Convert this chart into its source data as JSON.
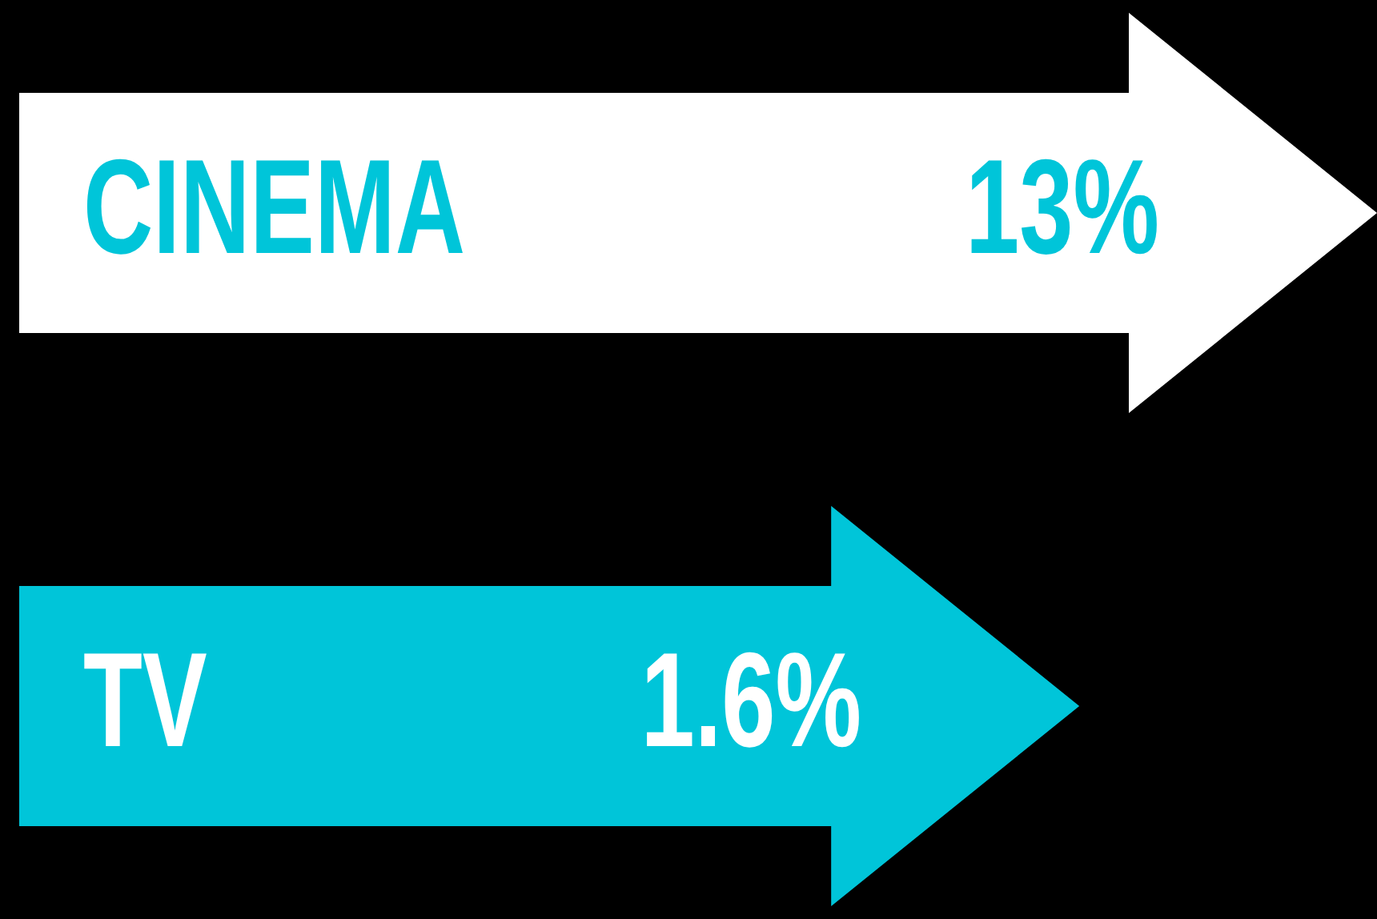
{
  "chart_data": {
    "type": "other",
    "categories": [
      "CINEMA",
      "TV"
    ],
    "values": [
      13,
      1.6
    ],
    "value_labels": [
      "13%",
      "1.6%"
    ],
    "colors": [
      "#ffffff",
      "#00c5d9"
    ]
  }
}
